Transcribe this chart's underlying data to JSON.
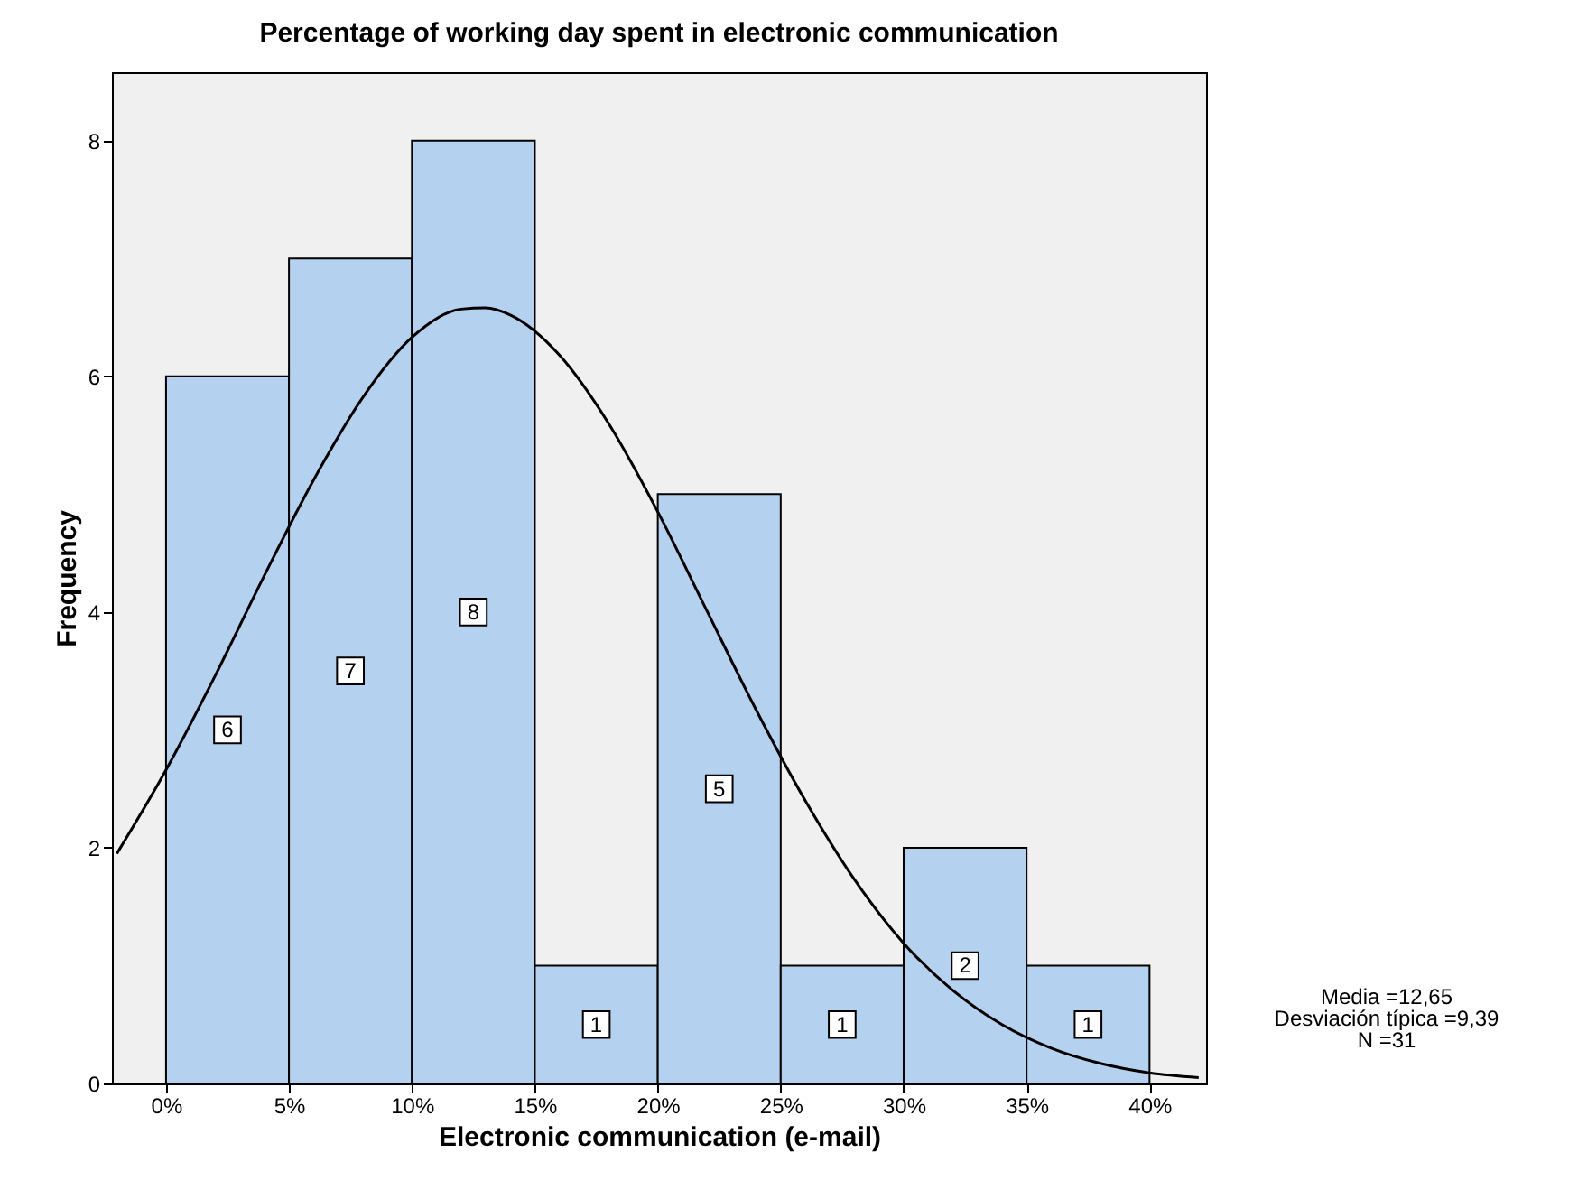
{
  "chart_data": {
    "type": "histogram",
    "title": "Percentage of working day spent in electronic communication",
    "xlabel": "Electronic communication (e-mail)",
    "ylabel": "Frequency",
    "bins": [
      0,
      5,
      10,
      15,
      20,
      25,
      30,
      35,
      40
    ],
    "values": [
      6,
      7,
      8,
      1,
      5,
      1,
      2,
      1
    ],
    "color": "#b4d2ef",
    "value_labels": [
      "6",
      "7",
      "8",
      "1",
      "5",
      "1",
      "2",
      "1"
    ],
    "series": [
      {
        "type": "line",
        "color": "#000000",
        "x": [
          -2,
          0,
          2,
          4,
          6,
          8,
          10,
          12,
          13,
          14,
          16,
          18,
          20,
          22,
          24,
          26,
          28,
          30,
          32,
          34,
          36,
          38,
          40,
          42
        ],
        "values": [
          1.95,
          2.66,
          3.46,
          4.31,
          5.12,
          5.82,
          6.33,
          6.57,
          6.58,
          6.52,
          6.18,
          5.6,
          4.85,
          4.01,
          3.17,
          2.4,
          1.73,
          1.19,
          0.79,
          0.5,
          0.3,
          0.17,
          0.09,
          0.05
        ]
      }
    ],
    "xlim": [
      -2.2,
      42.3
    ],
    "ylim": [
      0,
      8.58
    ],
    "xticks": [
      {
        "value": 0,
        "label": "0%"
      },
      {
        "value": 5,
        "label": "5%"
      },
      {
        "value": 10,
        "label": "10%"
      },
      {
        "value": 15,
        "label": "15%"
      },
      {
        "value": 20,
        "label": "20%"
      },
      {
        "value": 25,
        "label": "25%"
      },
      {
        "value": 30,
        "label": "30%"
      },
      {
        "value": 35,
        "label": "35%"
      },
      {
        "value": 40,
        "label": "40%"
      }
    ],
    "yticks": [
      0,
      2,
      4,
      6,
      8
    ],
    "grid": false,
    "annotations": [
      "Media =12,65",
      "Desviación típica =9,39",
      "N =31"
    ]
  }
}
